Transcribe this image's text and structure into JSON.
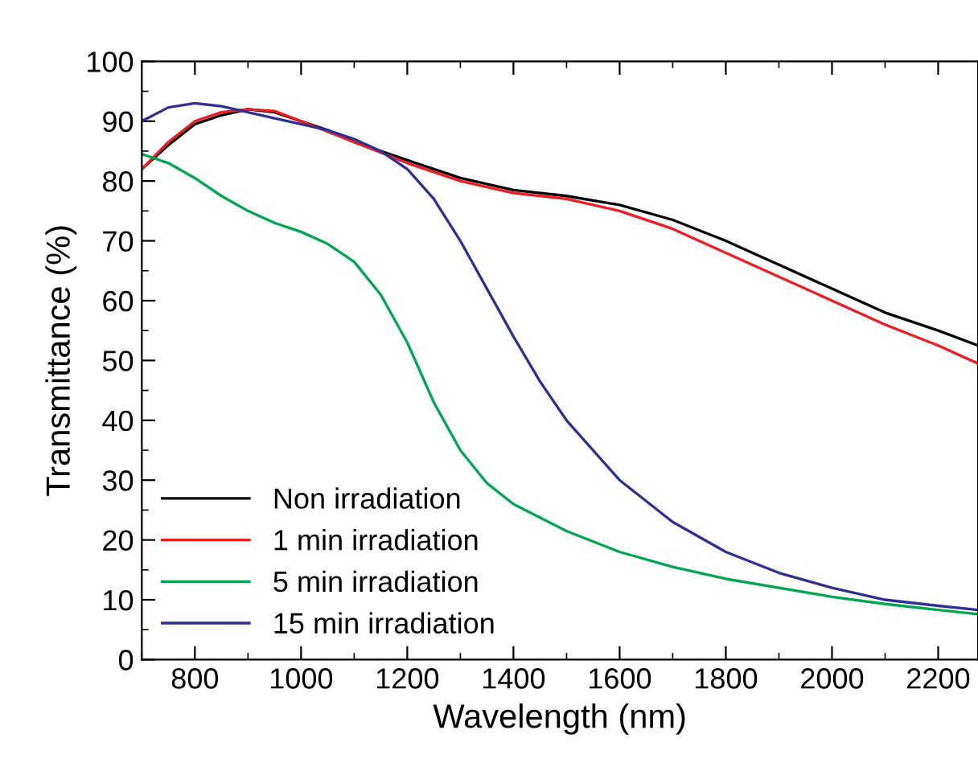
{
  "chart_data": {
    "type": "line",
    "xlabel": "Wavelength (nm)",
    "ylabel": "Transmittance (%)",
    "xlim": [
      700,
      2275
    ],
    "xticks": [
      800,
      1000,
      1200,
      1400,
      1600,
      1800,
      2000,
      2200
    ],
    "ylim": [
      0,
      100
    ],
    "yticks": [
      0,
      10,
      20,
      30,
      40,
      50,
      60,
      70,
      80,
      90,
      100
    ],
    "grid": false,
    "legend": "bottom left",
    "marker": "none",
    "line_style": "solid",
    "series": [
      {
        "name": "Non irradiation",
        "color": "#000000",
        "x": [
          700,
          750,
          800,
          850,
          900,
          950,
          1000,
          1050,
          1100,
          1200,
          1300,
          1400,
          1500,
          1600,
          1700,
          1800,
          1850,
          1900,
          2000,
          2100,
          2200,
          2275
        ],
        "values": [
          82,
          86,
          89.5,
          91,
          92,
          91.5,
          90,
          88.5,
          86.5,
          83.5,
          80.5,
          78.5,
          77.5,
          76,
          73.5,
          70,
          68,
          66,
          62,
          58,
          55,
          52.5
        ]
      },
      {
        "name": "1 min irradiation",
        "color": "#ee1c24",
        "x": [
          700,
          750,
          800,
          850,
          900,
          950,
          1000,
          1100,
          1200,
          1300,
          1400,
          1500,
          1600,
          1700,
          1800,
          1900,
          2000,
          2100,
          2200,
          2275
        ],
        "values": [
          82,
          86.5,
          90,
          91.5,
          92,
          91.7,
          90,
          86.5,
          83,
          80,
          78,
          77,
          75,
          72,
          68,
          64,
          60,
          56,
          52.5,
          49.5
        ]
      },
      {
        "name": "5 min irradiation",
        "color": "#00a651",
        "x": [
          700,
          750,
          800,
          850,
          900,
          950,
          1000,
          1050,
          1100,
          1150,
          1200,
          1250,
          1300,
          1350,
          1400,
          1500,
          1600,
          1700,
          1800,
          1900,
          2000,
          2100,
          2200,
          2275
        ],
        "values": [
          84.5,
          83,
          80.5,
          77.5,
          75,
          73,
          71.5,
          69.5,
          66.5,
          61,
          53,
          43,
          35,
          29.5,
          26,
          21.5,
          18,
          15.5,
          13.5,
          12,
          10.5,
          9.3,
          8.3,
          7.6
        ]
      },
      {
        "name": "15 min irradiation",
        "color": "#2e3192",
        "x": [
          700,
          750,
          800,
          850,
          900,
          950,
          1000,
          1050,
          1100,
          1150,
          1200,
          1250,
          1300,
          1350,
          1400,
          1450,
          1500,
          1600,
          1700,
          1800,
          1900,
          2000,
          2100,
          2200,
          2275
        ],
        "values": [
          90,
          92.3,
          93,
          92.5,
          91.5,
          90.5,
          89.5,
          88.5,
          87,
          85,
          82,
          77,
          70,
          62,
          54,
          46.5,
          40,
          30,
          23,
          18,
          14.5,
          12,
          10,
          9,
          8.3
        ]
      }
    ]
  }
}
